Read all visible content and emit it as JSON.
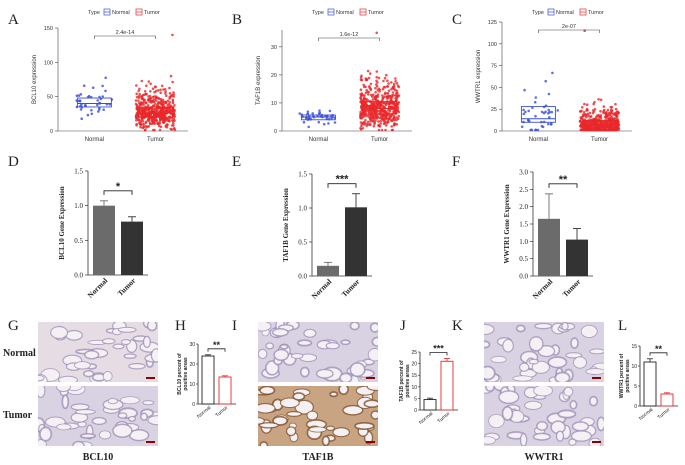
{
  "panel_letters": [
    "A",
    "B",
    "C",
    "D",
    "E",
    "F",
    "G",
    "H",
    "I",
    "J",
    "K",
    "L"
  ],
  "legend": {
    "title": "Type",
    "items": [
      {
        "label": "Normal",
        "color": "#3a4fd4"
      },
      {
        "label": "Tumor",
        "color": "#e8282a"
      }
    ]
  },
  "row_labels": {
    "normal": "Normal",
    "tumor": "Tumor"
  },
  "gene_captions": [
    "BCL10",
    "TAF1B",
    "WWTR1"
  ],
  "chart_data": [
    {
      "type": "box-scatter",
      "panel": "A",
      "ylabel": "BCL10 expression",
      "categories": [
        "Normal",
        "Tumor"
      ],
      "ylim": [
        0,
        150
      ],
      "yticks": [
        0,
        50,
        100,
        150
      ],
      "pvalue": "2.4e-14",
      "boxes": [
        {
          "q1": 35,
          "median": 40,
          "q3": 48,
          "n": 40
        },
        {
          "q1": 20,
          "median": 26,
          "q3": 35,
          "n": 500,
          "max": 140
        }
      ]
    },
    {
      "type": "box-scatter",
      "panel": "B",
      "ylabel": "TAF1B expression",
      "categories": [
        "Normal",
        "Tumor"
      ],
      "ylim": [
        0,
        36
      ],
      "yticks": [
        0,
        10,
        20,
        30
      ],
      "pvalue": "1.6e-12",
      "boxes": [
        {
          "q1": 4,
          "median": 5,
          "q3": 5.7,
          "n": 40
        },
        {
          "q1": 6,
          "median": 8,
          "q3": 10.5,
          "n": 500,
          "max": 35
        }
      ]
    },
    {
      "type": "box-scatter",
      "panel": "C",
      "ylabel": "WWTR1 expression",
      "categories": [
        "Normal",
        "Tumor"
      ],
      "ylim": [
        0,
        125
      ],
      "yticks": [
        0,
        25,
        50,
        75,
        100,
        125
      ],
      "pvalue": "2e-07",
      "boxes": [
        {
          "q1": 10,
          "median": 14,
          "q3": 28,
          "n": 40
        },
        {
          "q1": 4,
          "median": 7,
          "q3": 12,
          "n": 500,
          "max": 115
        }
      ]
    },
    {
      "type": "bar",
      "panel": "D",
      "ylabel": "BCL10 Gene Expression",
      "categories": [
        "Normal",
        "Tumor"
      ],
      "values": [
        1.0,
        0.77
      ],
      "errors": [
        0.07,
        0.07
      ],
      "ylim": [
        0,
        1.5
      ],
      "yticks": [
        "0.0",
        "0.5",
        "1.0",
        "1.5"
      ],
      "significance": "*",
      "colors": [
        "#6b6b6b",
        "#333333"
      ]
    },
    {
      "type": "bar",
      "panel": "E",
      "ylabel": "TAF1B Gene Expression",
      "categories": [
        "Normal",
        "Tumor"
      ],
      "values": [
        0.15,
        1.01
      ],
      "errors": [
        0.05,
        0.2
      ],
      "ylim": [
        0,
        1.5
      ],
      "yticks": [
        "0.0",
        "0.5",
        "1.0",
        "1.5"
      ],
      "significance": "***",
      "colors": [
        "#6b6b6b",
        "#333333"
      ]
    },
    {
      "type": "bar",
      "panel": "F",
      "ylabel": "WWTR1 Gene Expression",
      "categories": [
        "Normal",
        "Tumor"
      ],
      "values": [
        1.65,
        1.05
      ],
      "errors": [
        0.72,
        0.32
      ],
      "ylim": [
        0,
        3.0
      ],
      "yticks": [
        "0.0",
        "0.5",
        "1.0",
        "1.5",
        "2.0",
        "2.5",
        "3.0"
      ],
      "significance": "**",
      "colors": [
        "#6b6b6b",
        "#333333"
      ]
    },
    {
      "type": "bar",
      "panel": "H",
      "ylabel_lines": [
        "BCL10 percent of",
        "positive areas"
      ],
      "categories": [
        "Normal",
        "Tumor"
      ],
      "values": [
        24,
        13.5
      ],
      "errors": [
        0.6,
        0.6
      ],
      "ylim": [
        0,
        30
      ],
      "yticks": [
        "0",
        "10",
        "20",
        "30"
      ],
      "significance": "**",
      "colors": [
        "#222222",
        "#e8282a"
      ]
    },
    {
      "type": "bar",
      "panel": "J",
      "ylabel_lines": [
        "TAF1B percent of",
        "positive areas"
      ],
      "categories": [
        "Normal",
        "Tumor"
      ],
      "values": [
        4.5,
        21
      ],
      "errors": [
        0.6,
        1.2
      ],
      "ylim": [
        0,
        25
      ],
      "yticks": [
        "0",
        "5",
        "10",
        "15",
        "20",
        "25"
      ],
      "significance": "***",
      "colors": [
        "#222222",
        "#e8282a"
      ]
    },
    {
      "type": "bar",
      "panel": "L",
      "ylabel_lines": [
        "WWTR1 percent of",
        "positive areas"
      ],
      "categories": [
        "Normal",
        "Tumor"
      ],
      "values": [
        11,
        3
      ],
      "errors": [
        0.8,
        0.3
      ],
      "ylim": [
        0,
        15
      ],
      "yticks": [
        "0",
        "5",
        "10",
        "15"
      ],
      "significance": "**",
      "colors": [
        "#222222",
        "#e8282a"
      ]
    }
  ]
}
